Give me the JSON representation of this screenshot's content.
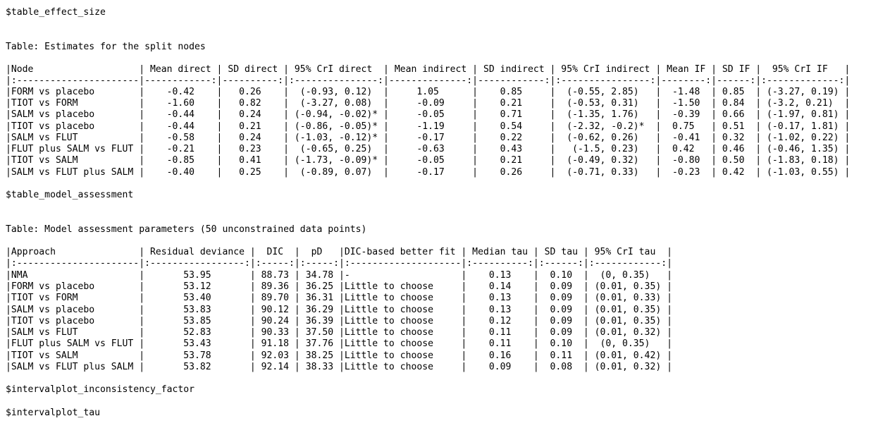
{
  "console": {
    "effect_size": {
      "var_name": "$table_effect_size",
      "caption": "Table: Estimates for the split nodes",
      "header": "|Node                   | Mean direct | SD direct | 95% CrI direct  | Mean indirect | SD indirect | 95% CrI indirect | Mean IF | SD IF |  95% CrI IF   |",
      "separator": "|:----------------------|------------:|----------:|:---------------:|--------------:|------------:|:----------------:|--------:|------:|:-------------:|",
      "rows": [
        "|FORM vs placebo        |    -0.42    |   0.26    |  (-0.93, 0.12)  |     1.05      |    0.85     |  (-0.55, 2.85)   |  -1.48  | 0.85  | (-3.27, 0.19) |",
        "|TIOT vs FORM           |    -1.60    |   0.82    |  (-3.27, 0.08)  |     -0.09     |    0.21     |  (-0.53, 0.31)   |  -1.50  | 0.84  | (-3.2, 0.21)  |",
        "|SALM vs placebo        |    -0.44    |   0.24    | (-0.94, -0.02)* |     -0.05     |    0.71     |  (-1.35, 1.76)   |  -0.39  | 0.66  | (-1.97, 0.81) |",
        "|TIOT vs placebo        |    -0.44    |   0.21    | (-0.86, -0.05)* |     -1.19     |    0.54     |  (-2.32, -0.2)*  |  0.75   | 0.51  | (-0.17, 1.81) |",
        "|SALM vs FLUT           |    -0.58    |   0.24    | (-1.03, -0.12)* |     -0.17     |    0.22     |  (-0.62, 0.26)   |  -0.41  | 0.32  | (-1.02, 0.22) |",
        "|FLUT plus SALM vs FLUT |    -0.21    |   0.23    |  (-0.65, 0.25)  |     -0.63     |    0.43     |   (-1.5, 0.23)   |  0.42   | 0.46  | (-0.46, 1.35) |",
        "|TIOT vs SALM           |    -0.85    |   0.41    | (-1.73, -0.09)* |     -0.05     |    0.21     |  (-0.49, 0.32)   |  -0.80  | 0.50  | (-1.83, 0.18) |",
        "|SALM vs FLUT plus SALM |    -0.40    |   0.25    |  (-0.89, 0.07)  |     -0.17     |    0.26     |  (-0.71, 0.33)   |  -0.23  | 0.42  | (-1.03, 0.55) |"
      ]
    },
    "model_assessment": {
      "var_name": "$table_model_assessment",
      "caption": "Table: Model assessment parameters (50 unconstrained data points)",
      "header": "|Approach               | Residual deviance |  DIC  |  pD   |DIC-based better fit | Median tau | SD tau | 95% CrI tau  |",
      "separator": "|:----------------------|:-----------------:|:-----:|:-----:|:--------------------|:----------:|:------:|:------------:|",
      "rows": [
        "|NMA                    |       53.95       | 88.73 | 34.78 |-                    |    0.13    |  0.10  |  (0, 0.35)   |",
        "|FORM vs placebo        |       53.12       | 89.36 | 36.25 |Little to choose     |    0.14    |  0.09  | (0.01, 0.35) |",
        "|TIOT vs FORM           |       53.40       | 89.70 | 36.31 |Little to choose     |    0.13    |  0.09  | (0.01, 0.33) |",
        "|SALM vs placebo        |       53.83       | 90.12 | 36.29 |Little to choose     |    0.13    |  0.09  | (0.01, 0.35) |",
        "|TIOT vs placebo        |       53.85       | 90.24 | 36.39 |Little to choose     |    0.12    |  0.09  | (0.01, 0.35) |",
        "|SALM vs FLUT           |       52.83       | 90.33 | 37.50 |Little to choose     |    0.11    |  0.09  | (0.01, 0.32) |",
        "|FLUT plus SALM vs FLUT |       53.43       | 91.18 | 37.76 |Little to choose     |    0.11    |  0.10  |  (0, 0.35)   |",
        "|TIOT vs SALM           |       53.78       | 92.03 | 38.25 |Little to choose     |    0.16    |  0.11  | (0.01, 0.42) |",
        "|SALM vs FLUT plus SALM |       53.82       | 92.14 | 38.33 |Little to choose     |    0.09    |  0.08  | (0.01, 0.32) |"
      ]
    },
    "interval_if_var": "$intervalplot_inconsistency_factor",
    "interval_tau_var": "$intervalplot_tau"
  }
}
